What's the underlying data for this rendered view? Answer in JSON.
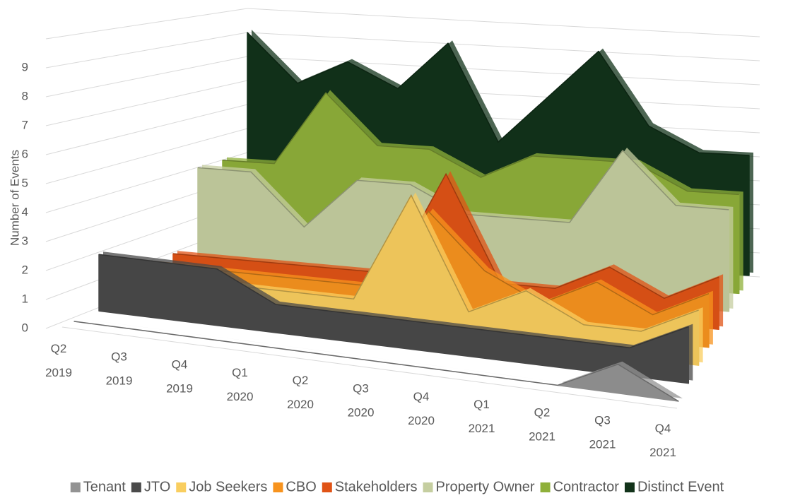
{
  "chart_data": {
    "type": "area3d",
    "y_label": "Number of Events",
    "categories": [
      "Q2 2019",
      "Q3 2019",
      "Q4 2019",
      "Q1 2020",
      "Q2 2020",
      "Q3 2020",
      "Q4 2020",
      "Q1 2021",
      "Q2 2021",
      "Q3 2021",
      "Q4 2021"
    ],
    "series": [
      {
        "name": "Tenant",
        "color": "#939393",
        "values": [
          0,
          0,
          0,
          0,
          0,
          0,
          0,
          0,
          0,
          1,
          0
        ]
      },
      {
        "name": "JTO",
        "color": "#4a4a4a",
        "values": [
          2,
          2,
          2,
          1,
          1,
          1,
          1,
          1,
          1,
          1,
          2
        ]
      },
      {
        "name": "Job Seekers",
        "color": "#f9ce5f",
        "values": [
          1,
          1,
          1,
          1,
          1,
          5,
          1,
          2,
          1,
          1,
          2
        ]
      },
      {
        "name": "CBO",
        "color": "#f7931e",
        "values": [
          1,
          1,
          1,
          1,
          1,
          4,
          2,
          1,
          2,
          1,
          2
        ]
      },
      {
        "name": "Stakeholders",
        "color": "#e05316",
        "values": [
          1,
          1,
          1,
          1,
          1,
          5,
          1,
          1,
          2,
          1,
          2
        ]
      },
      {
        "name": "Property Owner",
        "color": "#c5cea0",
        "values": [
          4,
          4,
          2,
          4,
          4,
          3,
          3,
          3,
          6,
          4,
          4
        ]
      },
      {
        "name": "Contractor",
        "color": "#8fb03a",
        "values": [
          4,
          4,
          7,
          5,
          5,
          4,
          5,
          5,
          5,
          4,
          4
        ]
      },
      {
        "name": "Distinct Event",
        "color": "#12331a",
        "values": [
          9,
          7,
          8,
          7,
          9,
          5,
          7,
          9,
          6,
          5,
          5
        ]
      }
    ],
    "ylim": [
      0,
      10
    ],
    "yticks": [
      0,
      1,
      2,
      3,
      4,
      5,
      6,
      7,
      8,
      9
    ],
    "grid": true,
    "legend": "bottom"
  }
}
